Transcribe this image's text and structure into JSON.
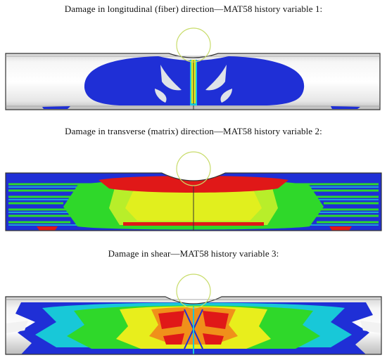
{
  "panels": [
    {
      "caption": "Damage in longitudinal (fiber) direction—MAT58 history variable 1:"
    },
    {
      "caption": "Damage in transverse (matrix) direction—MAT58 history variable 2:"
    },
    {
      "caption": "Damage in shear—MAT58 history variable 3:"
    }
  ],
  "colors": {
    "blue": "#1f2fd6",
    "cyan": "#18c8d8",
    "green": "#2fd82a",
    "yellow": "#e8ee1c",
    "red": "#e01818",
    "tube": "#ececec",
    "impactor": "#c8dc6a"
  }
}
